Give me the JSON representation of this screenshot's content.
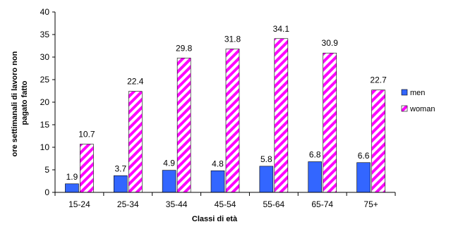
{
  "chart_data": {
    "type": "bar",
    "title": "",
    "xlabel": "Classi di età",
    "ylabel": "ore settimanali di lavoro non pagato fatto",
    "ylim": [
      0,
      40
    ],
    "yticks": [
      0,
      5,
      10,
      15,
      20,
      25,
      30,
      35,
      40
    ],
    "grid": false,
    "legend_position": "right",
    "categories": [
      "15-24",
      "25-34",
      "35-44",
      "45-54",
      "55-64",
      "65-74",
      "75+"
    ],
    "series": [
      {
        "name": "men",
        "values": [
          1.9,
          3.7,
          4.9,
          4.8,
          5.8,
          6.8,
          6.6
        ],
        "color": "#3366ff",
        "pattern": "solid"
      },
      {
        "name": "woman",
        "values": [
          10.7,
          22.4,
          29.8,
          31.8,
          34.1,
          30.9,
          22.7
        ],
        "color": "#ff00ff",
        "pattern": "diagonal-stripes"
      }
    ],
    "data_labels": {
      "men": [
        "1.9",
        "3.7",
        "4.9",
        "4.8",
        "5.8",
        "6.8",
        "6.6"
      ],
      "woman": [
        "10.7",
        "22.4",
        "29.8",
        "31.8",
        "34.1",
        "30.9",
        "22.7"
      ]
    }
  }
}
